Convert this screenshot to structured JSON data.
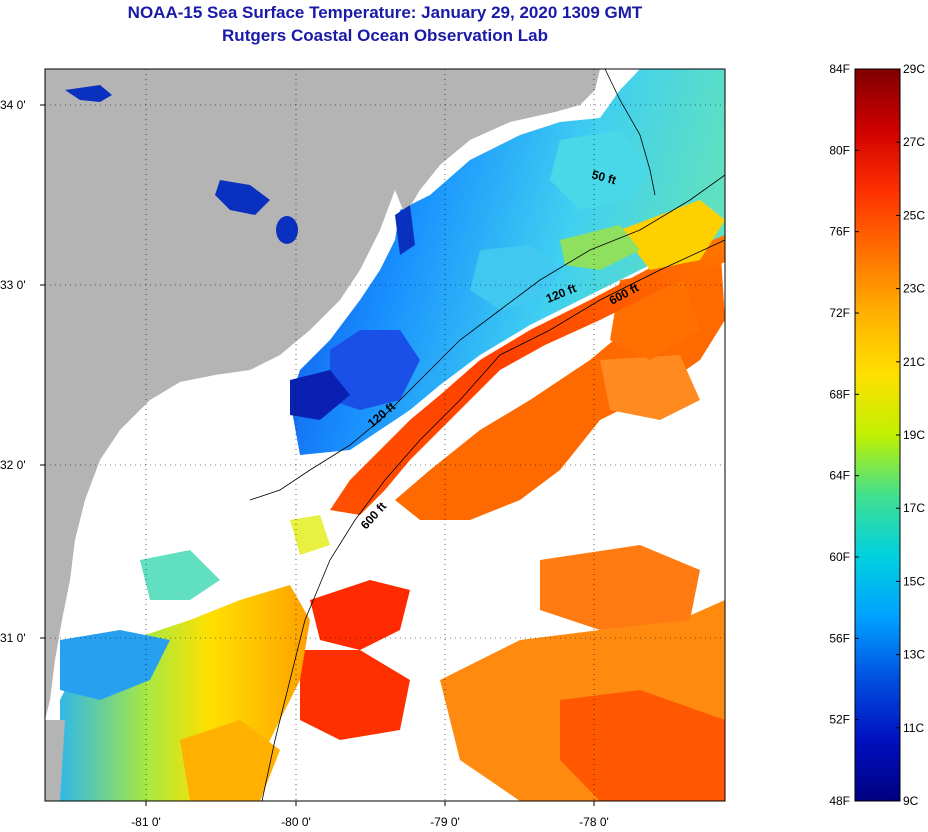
{
  "header": {
    "title_line1": "NOAA-15 Sea Surface Temperature:  January 29, 2020 1309 GMT",
    "title_line2": "Rutgers Coastal Ocean Observation Lab"
  },
  "map": {
    "lon_labels": [
      "-81 0'",
      "-80 0'",
      "-79 0'",
      "-78 0'"
    ],
    "lat_labels": [
      "34 0'",
      "33 0'",
      "32 0'",
      "31 0'"
    ],
    "contour_labels": [
      {
        "id": "c50",
        "text": "50 ft"
      },
      {
        "id": "c120a",
        "text": "120 ft"
      },
      {
        "id": "c600a",
        "text": "600 ft"
      },
      {
        "id": "c120b",
        "text": "120 ft"
      },
      {
        "id": "c600b",
        "text": "600 ft"
      }
    ],
    "colors": {
      "land": "#b4b4b4",
      "cloud": "#ffffff",
      "frame": "#000000"
    }
  },
  "colorbar": {
    "fahrenheit_labels": [
      "84F",
      "80F",
      "76F",
      "72F",
      "68F",
      "64F",
      "60F",
      "56F",
      "52F",
      "48F"
    ],
    "celsius_labels": [
      "29C",
      "27C",
      "25C",
      "23C",
      "21C",
      "19C",
      "17C",
      "15C",
      "13C",
      "11C",
      "9C"
    ],
    "gradient_stops": [
      "#800000",
      "#d00000",
      "#ff3000",
      "#ff7000",
      "#ffb000",
      "#ffe000",
      "#c0f000",
      "#40e090",
      "#00d0e0",
      "#00a0ff",
      "#0050e0",
      "#0010c0",
      "#000080"
    ]
  }
}
